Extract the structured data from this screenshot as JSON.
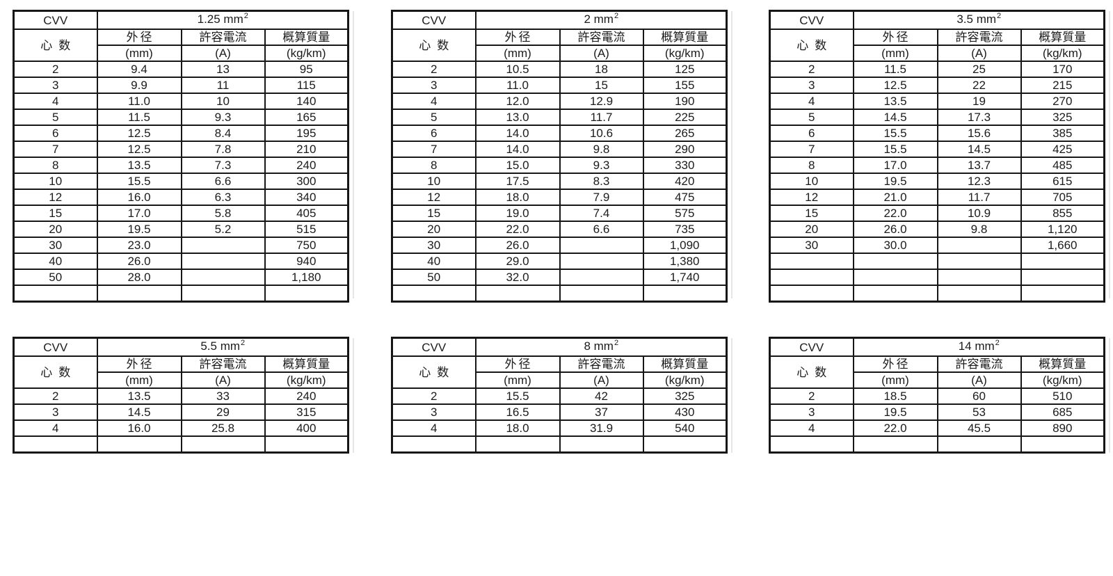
{
  "document": {
    "background": "#ffffff",
    "ink_color": "#1b1b1b",
    "border_color": "#161616",
    "header": {
      "corner_label": "CVV",
      "row_axis_label": "心数",
      "columns": [
        {
          "title": "外径",
          "unit": "(mm)"
        },
        {
          "title": "許容電流",
          "unit": "(A)"
        },
        {
          "title": "概算質量",
          "unit": "(kg/km)"
        }
      ]
    },
    "tables": [
      {
        "size_label": "1.25 mm",
        "size_exponent": "2",
        "rows": [
          [
            "2",
            "9.4",
            "13",
            "95"
          ],
          [
            "3",
            "9.9",
            "11",
            "115"
          ],
          [
            "4",
            "11.0",
            "10",
            "140"
          ],
          [
            "5",
            "11.5",
            "9.3",
            "165"
          ],
          [
            "6",
            "12.5",
            "8.4",
            "195"
          ],
          [
            "7",
            "12.5",
            "7.8",
            "210"
          ],
          [
            "8",
            "13.5",
            "7.3",
            "240"
          ],
          [
            "10",
            "15.5",
            "6.6",
            "300"
          ],
          [
            "12",
            "16.0",
            "6.3",
            "340"
          ],
          [
            "15",
            "17.0",
            "5.8",
            "405"
          ],
          [
            "20",
            "19.5",
            "5.2",
            "515"
          ],
          [
            "30",
            "23.0",
            "",
            "750"
          ],
          [
            "40",
            "26.0",
            "",
            "940"
          ],
          [
            "50",
            "28.0",
            "",
            "1,180"
          ]
        ],
        "empty_rows": 1
      },
      {
        "size_label": "2 mm",
        "size_exponent": "2",
        "rows": [
          [
            "2",
            "10.5",
            "18",
            "125"
          ],
          [
            "3",
            "11.0",
            "15",
            "155"
          ],
          [
            "4",
            "12.0",
            "12.9",
            "190"
          ],
          [
            "5",
            "13.0",
            "11.7",
            "225"
          ],
          [
            "6",
            "14.0",
            "10.6",
            "265"
          ],
          [
            "7",
            "14.0",
            "9.8",
            "290"
          ],
          [
            "8",
            "15.0",
            "9.3",
            "330"
          ],
          [
            "10",
            "17.5",
            "8.3",
            "420"
          ],
          [
            "12",
            "18.0",
            "7.9",
            "475"
          ],
          [
            "15",
            "19.0",
            "7.4",
            "575"
          ],
          [
            "20",
            "22.0",
            "6.6",
            "735"
          ],
          [
            "30",
            "26.0",
            "",
            "1,090"
          ],
          [
            "40",
            "29.0",
            "",
            "1,380"
          ],
          [
            "50",
            "32.0",
            "",
            "1,740"
          ]
        ],
        "empty_rows": 1
      },
      {
        "size_label": "3.5 mm",
        "size_exponent": "2",
        "rows": [
          [
            "2",
            "11.5",
            "25",
            "170"
          ],
          [
            "3",
            "12.5",
            "22",
            "215"
          ],
          [
            "4",
            "13.5",
            "19",
            "270"
          ],
          [
            "5",
            "14.5",
            "17.3",
            "325"
          ],
          [
            "6",
            "15.5",
            "15.6",
            "385"
          ],
          [
            "7",
            "15.5",
            "14.5",
            "425"
          ],
          [
            "8",
            "17.0",
            "13.7",
            "485"
          ],
          [
            "10",
            "19.5",
            "12.3",
            "615"
          ],
          [
            "12",
            "21.0",
            "11.7",
            "705"
          ],
          [
            "15",
            "22.0",
            "10.9",
            "855"
          ],
          [
            "20",
            "26.0",
            "9.8",
            "1,120"
          ],
          [
            "30",
            "30.0",
            "",
            "1,660"
          ]
        ],
        "empty_rows": 3
      },
      {
        "size_label": "5.5 mm",
        "size_exponent": "2",
        "rows": [
          [
            "2",
            "13.5",
            "33",
            "240"
          ],
          [
            "3",
            "14.5",
            "29",
            "315"
          ],
          [
            "4",
            "16.0",
            "25.8",
            "400"
          ]
        ],
        "empty_rows": 1
      },
      {
        "size_label": "8 mm",
        "size_exponent": "2",
        "rows": [
          [
            "2",
            "15.5",
            "42",
            "325"
          ],
          [
            "3",
            "16.5",
            "37",
            "430"
          ],
          [
            "4",
            "18.0",
            "31.9",
            "540"
          ]
        ],
        "empty_rows": 1
      },
      {
        "size_label": "14 mm",
        "size_exponent": "2",
        "rows": [
          [
            "2",
            "18.5",
            "60",
            "510"
          ],
          [
            "3",
            "19.5",
            "53",
            "685"
          ],
          [
            "4",
            "22.0",
            "45.5",
            "890"
          ]
        ],
        "empty_rows": 1
      }
    ]
  }
}
